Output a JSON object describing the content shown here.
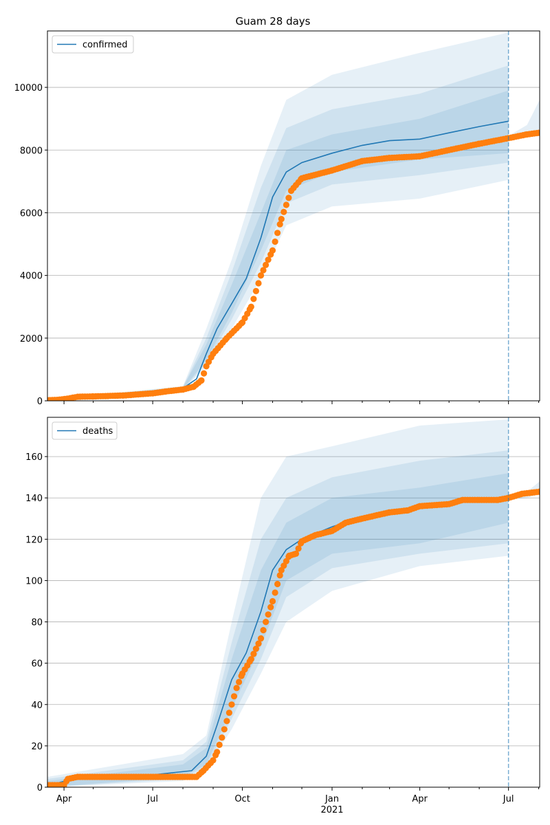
{
  "chart_data": [
    {
      "type": "line",
      "title": "Guam 28 days",
      "series": [
        {
          "name": "confirmed",
          "kind": "model",
          "color": "#1f77b4",
          "points": [
            [
              "2020-03-15",
              20
            ],
            [
              "2020-04-15",
              100
            ],
            [
              "2020-06-01",
              150
            ],
            [
              "2020-07-01",
              250
            ],
            [
              "2020-08-01",
              400
            ],
            [
              "2020-08-15",
              700
            ],
            [
              "2020-08-25",
              1500
            ],
            [
              "2020-09-05",
              2300
            ],
            [
              "2020-09-20",
              3100
            ],
            [
              "2020-10-05",
              3900
            ],
            [
              "2020-10-20",
              5200
            ],
            [
              "2020-11-01",
              6500
            ],
            [
              "2020-11-15",
              7300
            ],
            [
              "2020-12-01",
              7600
            ],
            [
              "2021-01-01",
              7900
            ],
            [
              "2021-02-01",
              8150
            ],
            [
              "2021-03-01",
              8300
            ],
            [
              "2021-04-01",
              8350
            ],
            [
              "2021-05-01",
              8550
            ],
            [
              "2021-06-01",
              8750
            ],
            [
              "2021-07-01",
              8920
            ]
          ]
        },
        {
          "name": "",
          "kind": "observed",
          "color": "#ff7f0e",
          "points": [
            [
              "2020-03-15",
              20
            ],
            [
              "2020-03-25",
              30
            ],
            [
              "2020-04-05",
              70
            ],
            [
              "2020-04-15",
              130
            ],
            [
              "2020-05-01",
              140
            ],
            [
              "2020-06-01",
              170
            ],
            [
              "2020-07-01",
              240
            ],
            [
              "2020-07-15",
              300
            ],
            [
              "2020-08-01",
              360
            ],
            [
              "2020-08-12",
              450
            ],
            [
              "2020-08-20",
              650
            ],
            [
              "2020-08-25",
              1100
            ],
            [
              "2020-09-01",
              1500
            ],
            [
              "2020-09-15",
              2000
            ],
            [
              "2020-10-01",
              2500
            ],
            [
              "2020-10-10",
              3000
            ],
            [
              "2020-10-20",
              4000
            ],
            [
              "2020-11-01",
              4800
            ],
            [
              "2020-11-10",
              5800
            ],
            [
              "2020-11-20",
              6700
            ],
            [
              "2020-12-01",
              7100
            ],
            [
              "2021-01-01",
              7350
            ],
            [
              "2021-02-01",
              7650
            ],
            [
              "2021-03-01",
              7750
            ],
            [
              "2021-04-01",
              7800
            ],
            [
              "2021-05-01",
              8000
            ],
            [
              "2021-06-01",
              8200
            ],
            [
              "2021-07-01",
              8380
            ],
            [
              "2021-07-20",
              8500
            ],
            [
              "2021-08-01",
              8550
            ]
          ]
        }
      ],
      "bands": [
        {
          "points": [
            [
              "2020-03-15",
              0,
              40
            ],
            [
              "2020-08-01",
              330,
              470
            ],
            [
              "2020-08-25",
              1100,
              2300
            ],
            [
              "2020-09-20",
              2300,
              4500
            ],
            [
              "2020-10-20",
              3900,
              7500
            ],
            [
              "2020-11-15",
              5600,
              9600
            ],
            [
              "2021-01-01",
              6200,
              10400
            ],
            [
              "2021-04-01",
              6450,
              11100
            ],
            [
              "2021-07-01",
              7050,
              11750
            ]
          ]
        },
        {
          "points": [
            [
              "2020-03-15",
              5,
              35
            ],
            [
              "2020-08-01",
              350,
              450
            ],
            [
              "2020-08-25",
              1200,
              2000
            ],
            [
              "2020-09-20",
              2600,
              4100
            ],
            [
              "2020-10-20",
              4400,
              6800
            ],
            [
              "2020-11-15",
              6300,
              8700
            ],
            [
              "2021-01-01",
              6900,
              9300
            ],
            [
              "2021-04-01",
              7200,
              9800
            ],
            [
              "2021-07-01",
              7600,
              10700
            ]
          ]
        },
        {
          "points": [
            [
              "2020-03-15",
              10,
              30
            ],
            [
              "2020-08-01",
              370,
              430
            ],
            [
              "2020-08-25",
              1300,
              1800
            ],
            [
              "2020-09-20",
              2800,
              3700
            ],
            [
              "2020-10-20",
              4800,
              6000
            ],
            [
              "2020-11-15",
              6700,
              8000
            ],
            [
              "2021-01-01",
              7300,
              8500
            ],
            [
              "2021-04-01",
              7700,
              9000
            ],
            [
              "2021-07-01",
              7900,
              9900
            ]
          ]
        }
      ],
      "extension_band": {
        "points": [
          [
            "2021-07-01",
            8300,
            8450
          ],
          [
            "2021-07-20",
            8450,
            8800
          ],
          [
            "2021-08-02",
            8550,
            9600
          ]
        ]
      },
      "forecast_date": "2021-07-01",
      "x_range": [
        "2020-03-15",
        "2021-08-02"
      ],
      "ylim": [
        0,
        11800
      ],
      "yticks": [
        0,
        2000,
        4000,
        6000,
        8000,
        10000
      ],
      "grid": "y",
      "legend": "top-left"
    },
    {
      "type": "line",
      "title": "",
      "series": [
        {
          "name": "deaths",
          "kind": "model",
          "color": "#1f77b4",
          "points": [
            [
              "2020-03-15",
              1
            ],
            [
              "2020-03-25",
              2
            ],
            [
              "2020-04-10",
              4
            ],
            [
              "2020-05-01",
              5
            ],
            [
              "2020-07-01",
              6
            ],
            [
              "2020-08-10",
              8
            ],
            [
              "2020-08-25",
              15
            ],
            [
              "2020-09-05",
              30
            ],
            [
              "2020-09-20",
              52
            ],
            [
              "2020-10-05",
              65
            ],
            [
              "2020-10-20",
              85
            ],
            [
              "2020-11-01",
              105
            ],
            [
              "2020-11-15",
              115
            ],
            [
              "2020-12-01",
              120
            ],
            [
              "2021-01-01",
              126
            ],
            [
              "2021-02-01",
              131
            ],
            [
              "2021-03-01",
              133
            ],
            [
              "2021-04-01",
              136
            ],
            [
              "2021-05-01",
              137
            ],
            [
              "2021-06-01",
              139
            ],
            [
              "2021-07-01",
              140
            ],
            [
              "2021-08-02",
              142
            ]
          ]
        },
        {
          "name": "",
          "kind": "observed",
          "color": "#ff7f0e",
          "points": [
            [
              "2020-03-15",
              1
            ],
            [
              "2020-04-01",
              1
            ],
            [
              "2020-04-05",
              4
            ],
            [
              "2020-04-15",
              5
            ],
            [
              "2020-08-15",
              5
            ],
            [
              "2020-08-22",
              8
            ],
            [
              "2020-09-01",
              13
            ],
            [
              "2020-09-05",
              17
            ],
            [
              "2020-09-10",
              24
            ],
            [
              "2020-09-15",
              32
            ],
            [
              "2020-09-20",
              40
            ],
            [
              "2020-09-25",
              48
            ],
            [
              "2020-10-01",
              55
            ],
            [
              "2020-10-10",
              62
            ],
            [
              "2020-10-20",
              72
            ],
            [
              "2020-10-25",
              80
            ],
            [
              "2020-11-01",
              90
            ],
            [
              "2020-11-10",
              105
            ],
            [
              "2020-11-18",
              112
            ],
            [
              "2020-11-25",
              113
            ],
            [
              "2020-12-01",
              119
            ],
            [
              "2020-12-15",
              122
            ],
            [
              "2021-01-01",
              124
            ],
            [
              "2021-01-15",
              128
            ],
            [
              "2021-02-01",
              130
            ],
            [
              "2021-03-01",
              133
            ],
            [
              "2021-03-20",
              134
            ],
            [
              "2021-04-01",
              136
            ],
            [
              "2021-05-01",
              137
            ],
            [
              "2021-05-15",
              139
            ],
            [
              "2021-06-01",
              139
            ],
            [
              "2021-06-20",
              139
            ],
            [
              "2021-07-01",
              140
            ],
            [
              "2021-07-15",
              142
            ],
            [
              "2021-08-02",
              143
            ]
          ]
        }
      ],
      "bands": [
        {
          "points": [
            [
              "2020-03-15",
              0,
              5
            ],
            [
              "2020-08-01",
              3,
              16
            ],
            [
              "2020-08-25",
              9,
              25
            ],
            [
              "2020-09-20",
              28,
              80
            ],
            [
              "2020-10-20",
              55,
              140
            ],
            [
              "2020-11-15",
              80,
              160
            ],
            [
              "2021-01-01",
              95,
              165
            ],
            [
              "2021-04-01",
              107,
              175
            ],
            [
              "2021-07-01",
              112,
              178
            ]
          ]
        },
        {
          "points": [
            [
              "2020-03-15",
              0,
              4
            ],
            [
              "2020-08-01",
              4,
              13
            ],
            [
              "2020-08-25",
              10,
              22
            ],
            [
              "2020-09-20",
              33,
              70
            ],
            [
              "2020-10-20",
              62,
              120
            ],
            [
              "2020-11-15",
              92,
              140
            ],
            [
              "2021-01-01",
              106,
              150
            ],
            [
              "2021-04-01",
              113,
              158
            ],
            [
              "2021-07-01",
              118,
              163
            ]
          ]
        },
        {
          "points": [
            [
              "2020-03-15",
              0,
              3
            ],
            [
              "2020-08-01",
              5,
              11
            ],
            [
              "2020-08-25",
              11,
              19
            ],
            [
              "2020-09-20",
              38,
              62
            ],
            [
              "2020-10-20",
              68,
              105
            ],
            [
              "2020-11-15",
              100,
              128
            ],
            [
              "2021-01-01",
              113,
              140
            ],
            [
              "2021-04-01",
              118,
              145
            ],
            [
              "2021-07-01",
              128,
              152
            ]
          ]
        }
      ],
      "extension_band": {
        "points": [
          [
            "2021-07-01",
            139,
            141
          ],
          [
            "2021-07-20",
            140,
            143
          ],
          [
            "2021-08-02",
            142,
            148
          ]
        ]
      },
      "forecast_date": "2021-07-01",
      "x_range": [
        "2020-03-15",
        "2021-08-02"
      ],
      "ylim": [
        0,
        179
      ],
      "yticks": [
        0,
        20,
        40,
        60,
        80,
        100,
        120,
        140,
        160
      ],
      "xticks": [
        {
          "date": "2020-04-01",
          "label": "Apr",
          "major": true
        },
        {
          "date": "2020-07-01",
          "label": "Jul",
          "major": true
        },
        {
          "date": "2020-10-01",
          "label": "Oct",
          "major": true
        },
        {
          "date": "2021-01-01",
          "label": "Jan",
          "sublabel": "2021",
          "major": true
        },
        {
          "date": "2021-04-01",
          "label": "Apr",
          "major": true
        },
        {
          "date": "2021-07-01",
          "label": "Jul",
          "major": true
        }
      ],
      "grid": "y",
      "legend": "top-left"
    }
  ]
}
